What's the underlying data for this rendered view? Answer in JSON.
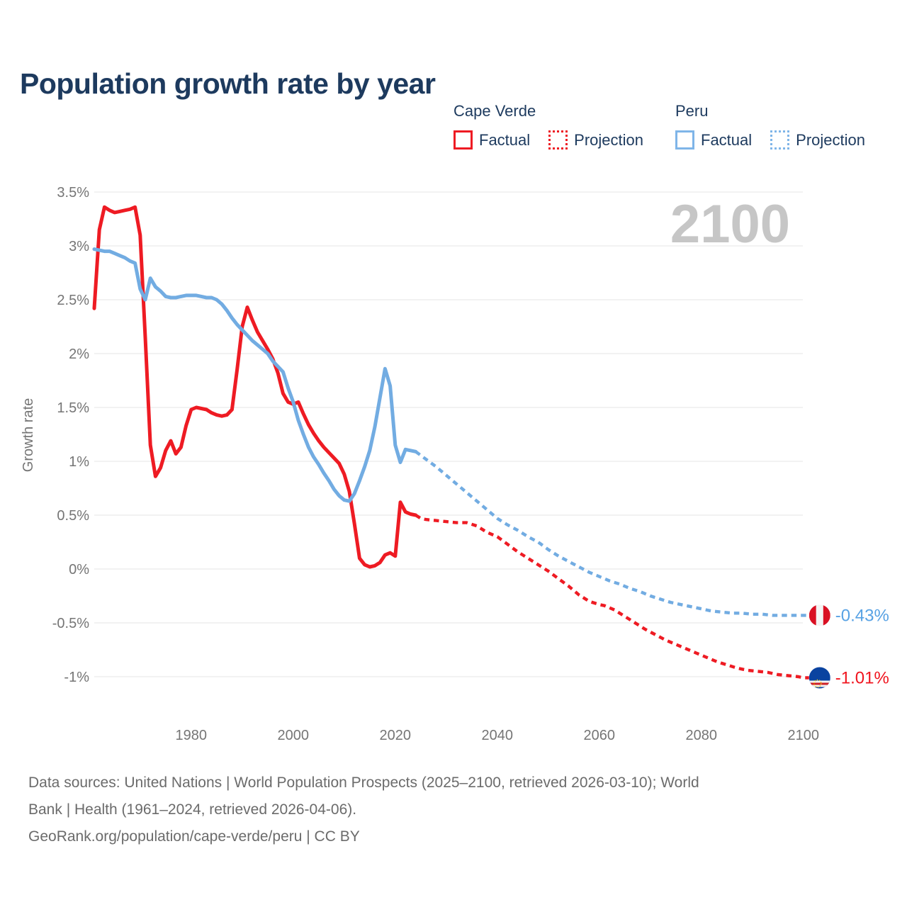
{
  "header": {
    "title": "Population growth rate by year"
  },
  "legend": {
    "groups": [
      {
        "country": "Cape Verde",
        "color": "#ee1b23",
        "items": [
          {
            "label": "Factual",
            "style": "solid"
          },
          {
            "label": "Projection",
            "style": "dotted"
          }
        ]
      },
      {
        "country": "Peru",
        "color": "#7fb5e8",
        "items": [
          {
            "label": "Factual",
            "style": "solid"
          },
          {
            "label": "Projection",
            "style": "dotted"
          }
        ]
      }
    ]
  },
  "source": {
    "line1": "Data sources: United Nations | World Population Prospects (2025–2100, retrieved 2026-03-10); World",
    "line2": "Bank | Health (1961–2024, retrieved 2026-04-06).",
    "line3": "GeoRank.org/population/cape-verde/peru | CC BY"
  },
  "chart_data": {
    "type": "line",
    "title": "Population growth rate by year",
    "xlabel": "",
    "ylabel": "Growth rate",
    "watermark": "2100",
    "xlim": [
      1961,
      2100
    ],
    "ylim": [
      -1.15,
      3.6
    ],
    "grid": true,
    "legend_position": "top-right",
    "x_ticks": [
      {
        "value": 1980,
        "label": "1980"
      },
      {
        "value": 2000,
        "label": "2000"
      },
      {
        "value": 2020,
        "label": "2020"
      },
      {
        "value": 2040,
        "label": "2040"
      },
      {
        "value": 2060,
        "label": "2060"
      },
      {
        "value": 2080,
        "label": "2080"
      },
      {
        "value": 2100,
        "label": "2100"
      }
    ],
    "y_ticks": [
      {
        "value": 3.5,
        "label": "3.5%"
      },
      {
        "value": 3,
        "label": "3%"
      },
      {
        "value": 2.5,
        "label": "2.5%"
      },
      {
        "value": 2,
        "label": "2%"
      },
      {
        "value": 1.5,
        "label": "1.5%"
      },
      {
        "value": 1,
        "label": "1%"
      },
      {
        "value": 0.5,
        "label": "0.5%"
      },
      {
        "value": 0,
        "label": "0%"
      },
      {
        "value": -0.5,
        "label": "-0.5%"
      },
      {
        "value": -1,
        "label": "-1%"
      }
    ],
    "colors": {
      "grid": "#e9e9e9",
      "axis_text": "#757575",
      "watermark": "#c6c6c6",
      "label_blue": "#58a2e4",
      "label_red": "#f0141e",
      "flag_peru_red": "#d91023",
      "flag_peru_white": "#f4f4f4",
      "flag_cv_blue": "#0a43a0",
      "flag_cv_red": "#cf2027",
      "flag_cv_white": "#f2f2f2",
      "flag_cv_yellow": "#f7d116"
    },
    "series": [
      {
        "name": "Cape Verde Factual",
        "key": "cape-verde-factual",
        "color": "#ee1b23",
        "style": "solid",
        "points": [
          [
            1961,
            2.42
          ],
          [
            1962,
            3.15
          ],
          [
            1963,
            3.36
          ],
          [
            1964,
            3.33
          ],
          [
            1965,
            3.31
          ],
          [
            1966,
            3.32
          ],
          [
            1967,
            3.33
          ],
          [
            1968,
            3.34
          ],
          [
            1969,
            3.36
          ],
          [
            1970,
            3.1
          ],
          [
            1971,
            2.15
          ],
          [
            1972,
            1.15
          ],
          [
            1973,
            0.86
          ],
          [
            1974,
            0.94
          ],
          [
            1975,
            1.1
          ],
          [
            1976,
            1.19
          ],
          [
            1977,
            1.07
          ],
          [
            1978,
            1.13
          ],
          [
            1979,
            1.33
          ],
          [
            1980,
            1.48
          ],
          [
            1981,
            1.5
          ],
          [
            1982,
            1.49
          ],
          [
            1983,
            1.48
          ],
          [
            1984,
            1.45
          ],
          [
            1985,
            1.43
          ],
          [
            1986,
            1.42
          ],
          [
            1987,
            1.43
          ],
          [
            1988,
            1.48
          ],
          [
            1989,
            1.85
          ],
          [
            1990,
            2.25
          ],
          [
            1991,
            2.43
          ],
          [
            1992,
            2.31
          ],
          [
            1993,
            2.2
          ],
          [
            1994,
            2.12
          ],
          [
            1995,
            2.04
          ],
          [
            1996,
            1.95
          ],
          [
            1997,
            1.82
          ],
          [
            1998,
            1.63
          ],
          [
            1999,
            1.55
          ],
          [
            2000,
            1.53
          ],
          [
            2001,
            1.55
          ],
          [
            2002,
            1.44
          ],
          [
            2003,
            1.34
          ],
          [
            2004,
            1.26
          ],
          [
            2005,
            1.19
          ],
          [
            2006,
            1.13
          ],
          [
            2007,
            1.08
          ],
          [
            2008,
            1.03
          ],
          [
            2009,
            0.98
          ],
          [
            2010,
            0.88
          ],
          [
            2011,
            0.72
          ],
          [
            2012,
            0.42
          ],
          [
            2013,
            0.1
          ],
          [
            2014,
            0.04
          ],
          [
            2015,
            0.02
          ],
          [
            2016,
            0.03
          ],
          [
            2017,
            0.06
          ],
          [
            2018,
            0.13
          ],
          [
            2019,
            0.15
          ],
          [
            2020,
            0.12
          ],
          [
            2021,
            0.62
          ],
          [
            2022,
            0.53
          ],
          [
            2023,
            0.51
          ],
          [
            2024,
            0.5
          ]
        ]
      },
      {
        "name": "Cape Verde Projection",
        "key": "cape-verde-projection",
        "color": "#ee1b23",
        "style": "dotted",
        "points": [
          [
            2024,
            0.5
          ],
          [
            2025,
            0.47
          ],
          [
            2026,
            0.46
          ],
          [
            2028,
            0.45
          ],
          [
            2030,
            0.44
          ],
          [
            2032,
            0.43
          ],
          [
            2034,
            0.43
          ],
          [
            2036,
            0.4
          ],
          [
            2038,
            0.34
          ],
          [
            2040,
            0.3
          ],
          [
            2042,
            0.23
          ],
          [
            2044,
            0.16
          ],
          [
            2046,
            0.1
          ],
          [
            2048,
            0.04
          ],
          [
            2050,
            -0.02
          ],
          [
            2052,
            -0.09
          ],
          [
            2054,
            -0.16
          ],
          [
            2056,
            -0.24
          ],
          [
            2058,
            -0.3
          ],
          [
            2060,
            -0.33
          ],
          [
            2061,
            -0.34
          ],
          [
            2063,
            -0.38
          ],
          [
            2065,
            -0.44
          ],
          [
            2067,
            -0.5
          ],
          [
            2069,
            -0.56
          ],
          [
            2071,
            -0.61
          ],
          [
            2073,
            -0.66
          ],
          [
            2075,
            -0.7
          ],
          [
            2077,
            -0.74
          ],
          [
            2079,
            -0.78
          ],
          [
            2081,
            -0.82
          ],
          [
            2083,
            -0.86
          ],
          [
            2085,
            -0.89
          ],
          [
            2087,
            -0.92
          ],
          [
            2089,
            -0.94
          ],
          [
            2091,
            -0.95
          ],
          [
            2093,
            -0.96
          ],
          [
            2095,
            -0.98
          ],
          [
            2097,
            -0.99
          ],
          [
            2099,
            -1.0
          ],
          [
            2100,
            -1.01
          ]
        ]
      },
      {
        "name": "Peru Factual",
        "key": "peru-factual",
        "color": "#72ace2",
        "style": "solid",
        "points": [
          [
            1961,
            2.97
          ],
          [
            1962,
            2.96
          ],
          [
            1963,
            2.95
          ],
          [
            1964,
            2.95
          ],
          [
            1965,
            2.93
          ],
          [
            1966,
            2.91
          ],
          [
            1967,
            2.89
          ],
          [
            1968,
            2.86
          ],
          [
            1969,
            2.84
          ],
          [
            1970,
            2.6
          ],
          [
            1971,
            2.5
          ],
          [
            1972,
            2.7
          ],
          [
            1973,
            2.62
          ],
          [
            1974,
            2.58
          ],
          [
            1975,
            2.53
          ],
          [
            1976,
            2.52
          ],
          [
            1977,
            2.52
          ],
          [
            1978,
            2.53
          ],
          [
            1979,
            2.54
          ],
          [
            1980,
            2.54
          ],
          [
            1981,
            2.54
          ],
          [
            1982,
            2.53
          ],
          [
            1983,
            2.52
          ],
          [
            1984,
            2.52
          ],
          [
            1985,
            2.5
          ],
          [
            1986,
            2.46
          ],
          [
            1987,
            2.4
          ],
          [
            1988,
            2.33
          ],
          [
            1989,
            2.27
          ],
          [
            1990,
            2.22
          ],
          [
            1991,
            2.17
          ],
          [
            1992,
            2.12
          ],
          [
            1993,
            2.08
          ],
          [
            1994,
            2.04
          ],
          [
            1995,
            2.0
          ],
          [
            1996,
            1.93
          ],
          [
            1997,
            1.88
          ],
          [
            1998,
            1.83
          ],
          [
            1999,
            1.68
          ],
          [
            2000,
            1.55
          ],
          [
            2001,
            1.38
          ],
          [
            2002,
            1.25
          ],
          [
            2003,
            1.13
          ],
          [
            2004,
            1.04
          ],
          [
            2005,
            0.97
          ],
          [
            2006,
            0.89
          ],
          [
            2007,
            0.82
          ],
          [
            2008,
            0.74
          ],
          [
            2009,
            0.68
          ],
          [
            2010,
            0.64
          ],
          [
            2011,
            0.63
          ],
          [
            2012,
            0.7
          ],
          [
            2013,
            0.82
          ],
          [
            2014,
            0.95
          ],
          [
            2015,
            1.1
          ],
          [
            2016,
            1.32
          ],
          [
            2017,
            1.59
          ],
          [
            2018,
            1.86
          ],
          [
            2019,
            1.7
          ],
          [
            2020,
            1.15
          ],
          [
            2021,
            0.99
          ],
          [
            2022,
            1.11
          ],
          [
            2023,
            1.1
          ],
          [
            2024,
            1.09
          ]
        ]
      },
      {
        "name": "Peru Projection",
        "key": "peru-projection",
        "color": "#72ace2",
        "style": "dotted",
        "points": [
          [
            2024,
            1.09
          ],
          [
            2026,
            1.02
          ],
          [
            2028,
            0.95
          ],
          [
            2030,
            0.87
          ],
          [
            2032,
            0.79
          ],
          [
            2034,
            0.71
          ],
          [
            2036,
            0.63
          ],
          [
            2038,
            0.55
          ],
          [
            2040,
            0.47
          ],
          [
            2042,
            0.41
          ],
          [
            2044,
            0.36
          ],
          [
            2046,
            0.3
          ],
          [
            2048,
            0.25
          ],
          [
            2050,
            0.18
          ],
          [
            2052,
            0.12
          ],
          [
            2054,
            0.07
          ],
          [
            2056,
            0.02
          ],
          [
            2058,
            -0.03
          ],
          [
            2060,
            -0.07
          ],
          [
            2062,
            -0.11
          ],
          [
            2064,
            -0.14
          ],
          [
            2066,
            -0.18
          ],
          [
            2068,
            -0.21
          ],
          [
            2070,
            -0.25
          ],
          [
            2072,
            -0.28
          ],
          [
            2074,
            -0.31
          ],
          [
            2076,
            -0.33
          ],
          [
            2078,
            -0.35
          ],
          [
            2080,
            -0.37
          ],
          [
            2082,
            -0.39
          ],
          [
            2084,
            -0.4
          ],
          [
            2086,
            -0.41
          ],
          [
            2088,
            -0.41
          ],
          [
            2090,
            -0.42
          ],
          [
            2092,
            -0.42
          ],
          [
            2094,
            -0.43
          ],
          [
            2096,
            -0.43
          ],
          [
            2098,
            -0.43
          ],
          [
            2100,
            -0.43
          ]
        ]
      }
    ],
    "end_labels": [
      {
        "country": "Peru",
        "label": "-0.43%",
        "value": -0.43,
        "color": "#58a2e4",
        "flag": "peru"
      },
      {
        "country": "Cape Verde",
        "label": "-1.01%",
        "value": -1.01,
        "color": "#f0141e",
        "flag": "cape-verde"
      }
    ]
  }
}
